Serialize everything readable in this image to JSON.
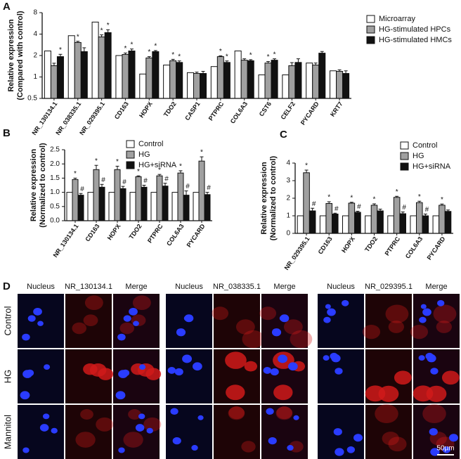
{
  "chart_data": [
    {
      "type": "bar",
      "panel": "A",
      "ylabel": [
        "Relative expression",
        "(Compared with control)"
      ],
      "log_scale": true,
      "log_base": 2,
      "ylim": [
        0.5,
        8
      ],
      "yticks": [
        0.5,
        1,
        2,
        4,
        8
      ],
      "categories": [
        "NR_130134.1",
        "NR_038335.1",
        "NR_029395.1",
        "CD163",
        "HOPX",
        "TDO2",
        "CASP1",
        "PTPRC",
        "COL6A3",
        "CST6",
        "CELF2",
        "PYCARD",
        "KRT7"
      ],
      "series": [
        {
          "name": "Microarray",
          "color": "#ffffff",
          "values": [
            2.32,
            3.8,
            5.9,
            2.0,
            1.1,
            1.47,
            1.15,
            1.4,
            2.32,
            1.07,
            1.07,
            1.57,
            1.22
          ]
        },
        {
          "name": "HG-stimulated HPCs",
          "color": "#a0a0a0",
          "values": [
            1.44,
            3.05,
            3.65,
            2.07,
            1.85,
            1.69,
            1.12,
            1.93,
            1.72,
            1.57,
            1.44,
            1.47,
            1.2
          ],
          "errors": [
            0.12,
            0.12,
            0.25,
            0.1,
            0.08,
            0.08,
            0.05,
            0.05,
            0.08,
            0.08,
            0.15,
            0.1,
            0.06
          ],
          "significance": [
            null,
            "*",
            "*",
            "*",
            "*",
            "*",
            null,
            "*",
            null,
            "*",
            null,
            null,
            null
          ]
        },
        {
          "name": "HG-stimulated HMCs",
          "color": "#111111",
          "values": [
            1.93,
            2.27,
            4.2,
            2.32,
            2.27,
            1.6,
            1.12,
            1.6,
            1.69,
            1.72,
            1.6,
            2.16,
            1.12
          ],
          "errors": [
            0.15,
            0.3,
            0.4,
            0.15,
            0.08,
            0.08,
            0.08,
            0.08,
            0.06,
            0.08,
            0.2,
            0.12,
            0.1
          ],
          "significance": [
            "*",
            null,
            "*",
            "*",
            "*",
            "*",
            null,
            "*",
            "*",
            "*",
            null,
            null,
            null
          ]
        }
      ]
    },
    {
      "type": "bar",
      "panel": "B",
      "ylabel": [
        "Relative expression",
        "(Normalized to control)"
      ],
      "ylim": [
        0,
        2.5
      ],
      "yticks": [
        {
          "value": 0,
          "label": "0.0"
        },
        0.5,
        {
          "value": 1,
          "label": "1.0"
        },
        1.5,
        {
          "value": 2,
          "label": "2.0"
        },
        2.5
      ],
      "categories": [
        "NR_130134.1",
        "CD163",
        "HOPX",
        "TDO2",
        "PTPRC",
        "COL6A3",
        "PYCARD"
      ],
      "series": [
        {
          "name": "Control",
          "color": "#ffffff",
          "values": [
            1,
            1,
            1,
            1,
            1,
            1,
            1
          ]
        },
        {
          "name": "HG",
          "color": "#a0a0a0",
          "values": [
            1.45,
            1.8,
            1.8,
            1.55,
            1.58,
            1.68,
            2.1
          ],
          "errors": [
            0.05,
            0.15,
            0.12,
            0.03,
            0.05,
            0.08,
            0.15
          ],
          "significance": [
            "*",
            "*",
            "*",
            "*",
            "*",
            "*",
            "*"
          ]
        },
        {
          "name": "HG+siRNA",
          "color": "#111111",
          "values": [
            0.9,
            1.18,
            1.13,
            1.18,
            1.22,
            0.9,
            0.92
          ],
          "errors": [
            0.06,
            0.1,
            0.08,
            0.07,
            0.1,
            0.15,
            0.08
          ],
          "significance": [
            "#",
            "#",
            "#",
            "#",
            "#",
            "#",
            "#"
          ]
        }
      ]
    },
    {
      "type": "bar",
      "panel": "C",
      "ylabel": [
        "Relative expression",
        "(Normalized to control)"
      ],
      "ylim": [
        0,
        4
      ],
      "yticks": [
        0,
        1,
        2,
        3,
        4
      ],
      "categories": [
        "NR_029395.1",
        "CD163",
        "HOPX",
        "TDO2",
        "PTPRC",
        "COL6A3",
        "PYCARD"
      ],
      "series": [
        {
          "name": "Control",
          "color": "#ffffff",
          "values": [
            1,
            1,
            1,
            1,
            1,
            1,
            1
          ]
        },
        {
          "name": "HG",
          "color": "#a0a0a0",
          "values": [
            3.45,
            1.7,
            1.72,
            1.6,
            2.05,
            1.75,
            1.6
          ],
          "errors": [
            0.15,
            0.1,
            0.05,
            0.08,
            0.06,
            0.08,
            0.07
          ],
          "significance": [
            "*",
            "*",
            "*",
            "*",
            "*",
            "*",
            "*"
          ]
        },
        {
          "name": "HG+siRNA",
          "color": "#111111",
          "values": [
            1.28,
            1.1,
            1.2,
            1.28,
            1.12,
            1.0,
            1.25
          ],
          "errors": [
            0.15,
            0.05,
            0.06,
            0.1,
            0.1,
            0.1,
            0.08
          ],
          "significance": [
            "#",
            "#",
            "#",
            null,
            "#",
            "#",
            null
          ]
        }
      ]
    }
  ],
  "panel_d": {
    "label": "D",
    "groups": [
      {
        "headers": [
          "Nucleus",
          "NR_130134.1",
          "Merge"
        ]
      },
      {
        "headers": [
          "Nucleus",
          "NR_038335.1",
          "Merge"
        ]
      },
      {
        "headers": [
          "Nucleus",
          "NR_029395.1",
          "Merge"
        ]
      }
    ],
    "rows": [
      "Control",
      "HG",
      "Mannitol"
    ],
    "scale_bar": "50µm"
  }
}
